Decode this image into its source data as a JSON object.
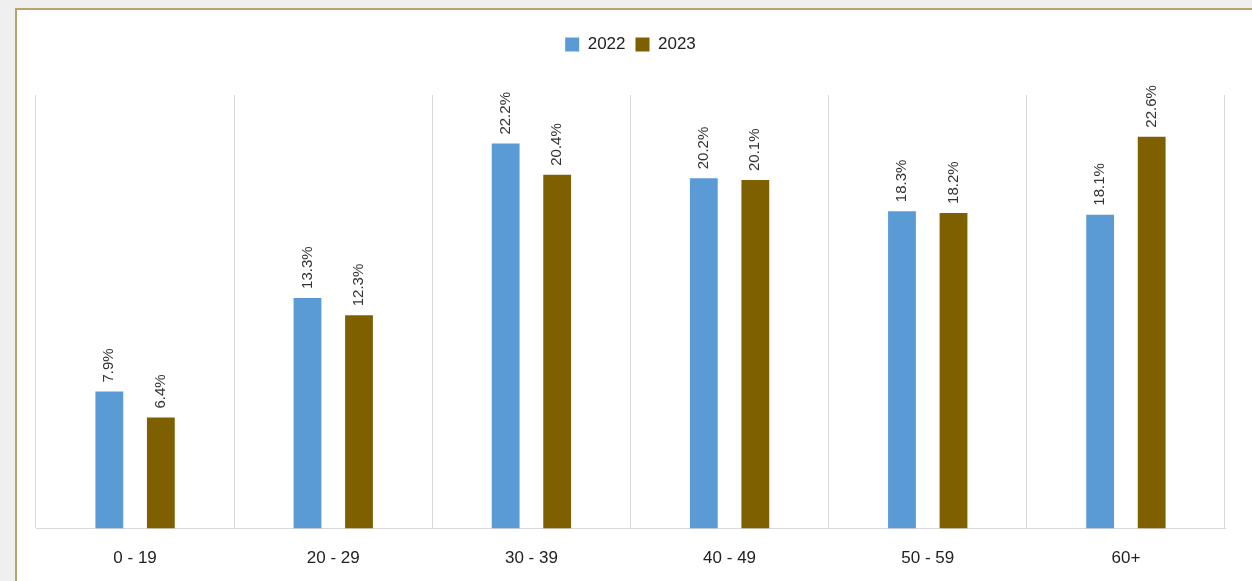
{
  "chart_data": {
    "type": "bar",
    "categories": [
      "0 - 19",
      "20 - 29",
      "30 - 39",
      "40 - 49",
      "50 - 59",
      "60+"
    ],
    "series": [
      {
        "name": "2022",
        "color": "#5b9bd5",
        "values": [
          7.9,
          13.3,
          22.2,
          20.2,
          18.3,
          18.1
        ],
        "value_labels": [
          "7.9%",
          "13.3%",
          "22.2%",
          "20.2%",
          "18.3%",
          "18.1%"
        ]
      },
      {
        "name": "2023",
        "color": "#7f6000",
        "values": [
          6.4,
          12.3,
          20.4,
          20.1,
          18.2,
          22.6
        ],
        "value_labels": [
          "6.4%",
          "12.3%",
          "20.4%",
          "20.1%",
          "18.2%",
          "22.6%"
        ]
      }
    ],
    "grid": "x",
    "legend": "top"
  }
}
